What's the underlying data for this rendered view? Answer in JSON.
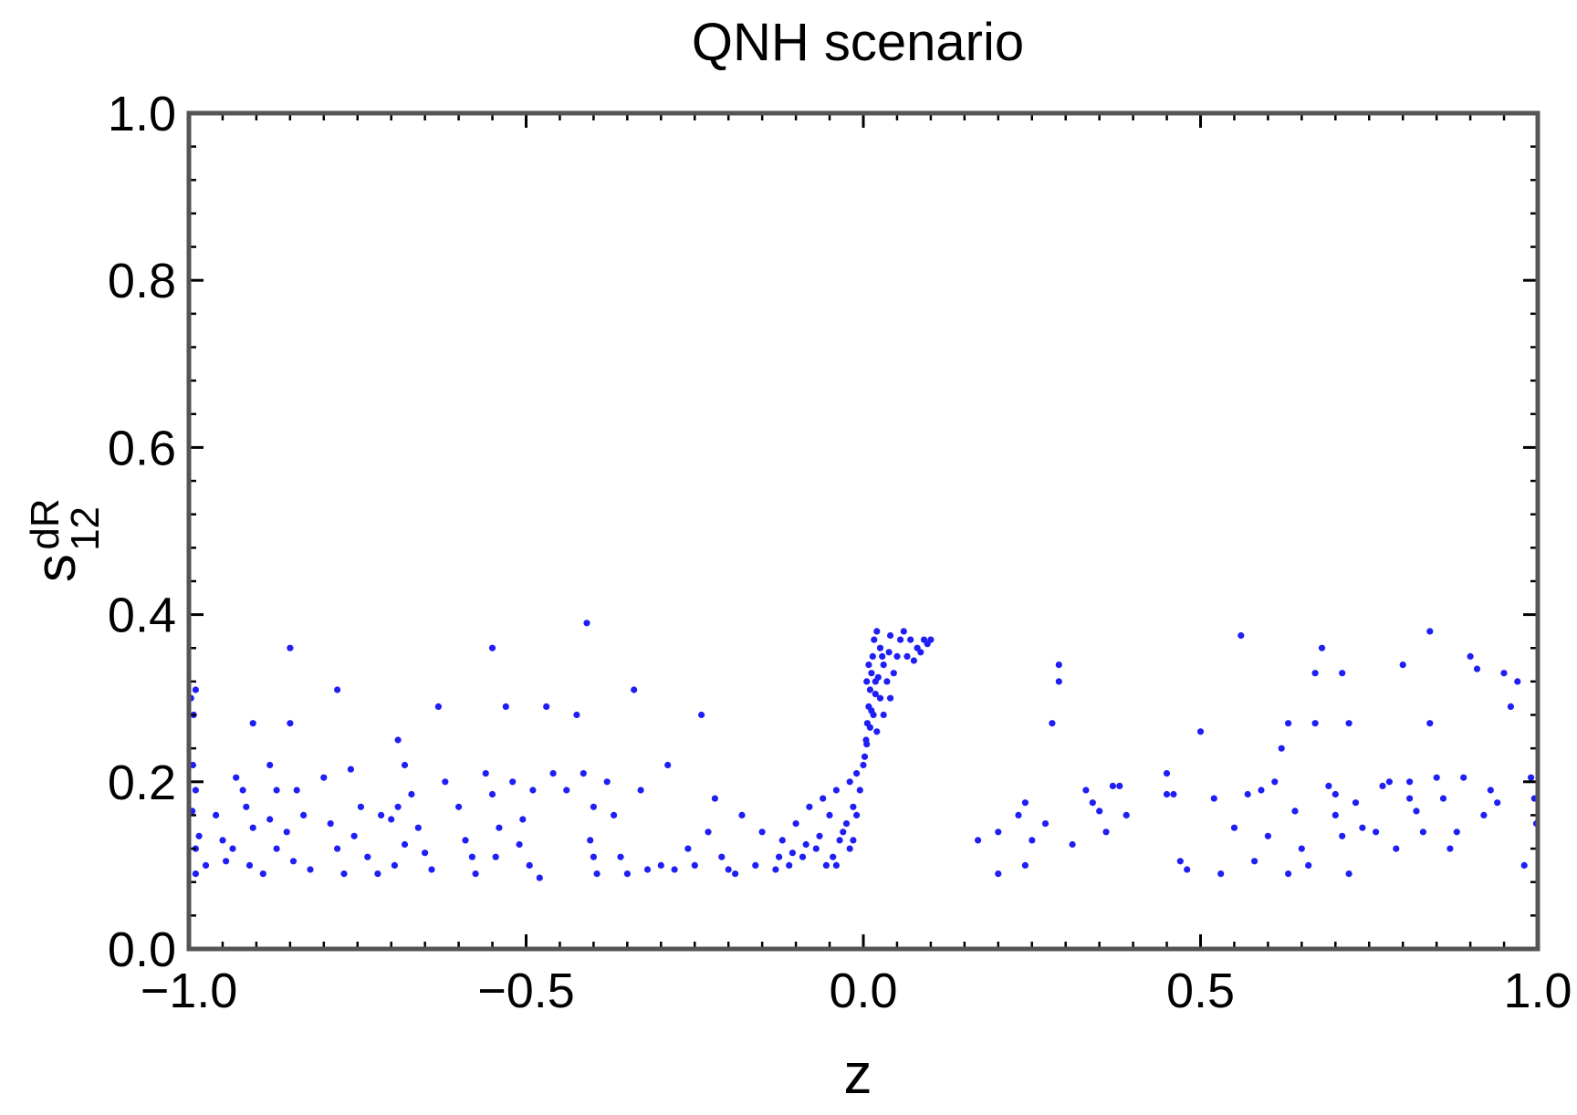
{
  "chart_data": {
    "type": "scatter",
    "title": "QNH scenario",
    "xlabel": "z",
    "ylabel": {
      "base": "s",
      "superscript": "dR",
      "subscript": "12"
    },
    "xlim": [
      -1.0,
      1.0
    ],
    "ylim": [
      0.0,
      1.0
    ],
    "xticks": [
      -1.0,
      -0.5,
      0.0,
      0.5,
      1.0
    ],
    "xtick_labels": [
      "−1.0",
      "−0.5",
      "0.0",
      "0.5",
      "1.0"
    ],
    "yticks": [
      0.0,
      0.2,
      0.4,
      0.6,
      0.8,
      1.0
    ],
    "ytick_labels": [
      "0.0",
      "0.2",
      "0.4",
      "0.6",
      "0.8",
      "1.0"
    ],
    "grid": false,
    "legend": "none",
    "colors": {
      "points": "#1f1ff5",
      "frame": "#555555"
    },
    "series": [
      {
        "points": [
          [
            -0.997,
            0.3
          ],
          [
            -0.99,
            0.31
          ],
          [
            -0.993,
            0.28
          ],
          [
            -0.994,
            0.22
          ],
          [
            -0.99,
            0.19
          ],
          [
            -0.995,
            0.165
          ],
          [
            -0.985,
            0.135
          ],
          [
            -0.99,
            0.12
          ],
          [
            -0.975,
            0.1
          ],
          [
            -0.99,
            0.09
          ],
          [
            -0.945,
            0.105
          ],
          [
            -0.95,
            0.13
          ],
          [
            -0.96,
            0.16
          ],
          [
            -0.93,
            0.205
          ],
          [
            -0.92,
            0.19
          ],
          [
            -0.915,
            0.17
          ],
          [
            -0.905,
            0.145
          ],
          [
            -0.935,
            0.12
          ],
          [
            -0.91,
            0.1
          ],
          [
            -0.905,
            0.27
          ],
          [
            -0.88,
            0.22
          ],
          [
            -0.87,
            0.19
          ],
          [
            -0.88,
            0.155
          ],
          [
            -0.855,
            0.14
          ],
          [
            -0.87,
            0.12
          ],
          [
            -0.89,
            0.09
          ],
          [
            -0.85,
            0.36
          ],
          [
            -0.85,
            0.27
          ],
          [
            -0.84,
            0.19
          ],
          [
            -0.83,
            0.16
          ],
          [
            -0.845,
            0.105
          ],
          [
            -0.82,
            0.095
          ],
          [
            -0.8,
            0.205
          ],
          [
            -0.79,
            0.15
          ],
          [
            -0.78,
            0.12
          ],
          [
            -0.77,
            0.09
          ],
          [
            -0.78,
            0.31
          ],
          [
            -0.76,
            0.215
          ],
          [
            -0.745,
            0.17
          ],
          [
            -0.755,
            0.135
          ],
          [
            -0.735,
            0.11
          ],
          [
            -0.72,
            0.09
          ],
          [
            -0.7,
            0.155
          ],
          [
            -0.69,
            0.17
          ],
          [
            -0.715,
            0.16
          ],
          [
            -0.68,
            0.125
          ],
          [
            -0.695,
            0.1
          ],
          [
            -0.69,
            0.25
          ],
          [
            -0.68,
            0.22
          ],
          [
            -0.67,
            0.185
          ],
          [
            -0.66,
            0.145
          ],
          [
            -0.65,
            0.115
          ],
          [
            -0.64,
            0.095
          ],
          [
            -0.62,
            0.2
          ],
          [
            -0.63,
            0.29
          ],
          [
            -0.6,
            0.17
          ],
          [
            -0.59,
            0.13
          ],
          [
            -0.58,
            0.11
          ],
          [
            -0.575,
            0.09
          ],
          [
            -0.56,
            0.21
          ],
          [
            -0.55,
            0.185
          ],
          [
            -0.54,
            0.145
          ],
          [
            -0.545,
            0.11
          ],
          [
            -0.55,
            0.36
          ],
          [
            -0.53,
            0.29
          ],
          [
            -0.52,
            0.2
          ],
          [
            -0.505,
            0.155
          ],
          [
            -0.51,
            0.125
          ],
          [
            -0.495,
            0.1
          ],
          [
            -0.49,
            0.19
          ],
          [
            -0.48,
            0.085
          ],
          [
            -0.47,
            0.29
          ],
          [
            -0.46,
            0.21
          ],
          [
            -0.44,
            0.19
          ],
          [
            -0.425,
            0.28
          ],
          [
            -0.415,
            0.21
          ],
          [
            -0.4,
            0.17
          ],
          [
            -0.405,
            0.13
          ],
          [
            -0.4,
            0.11
          ],
          [
            -0.395,
            0.09
          ],
          [
            -0.38,
            0.2
          ],
          [
            -0.37,
            0.16
          ],
          [
            -0.36,
            0.11
          ],
          [
            -0.35,
            0.09
          ],
          [
            -0.41,
            0.39
          ],
          [
            -0.34,
            0.31
          ],
          [
            -0.33,
            0.19
          ],
          [
            -0.29,
            0.22
          ],
          [
            -0.3,
            0.1
          ],
          [
            -0.26,
            0.12
          ],
          [
            -0.24,
            0.28
          ],
          [
            -0.23,
            0.14
          ],
          [
            -0.21,
            0.11
          ],
          [
            -0.2,
            0.095
          ],
          [
            -0.22,
            0.18
          ],
          [
            -0.18,
            0.16
          ],
          [
            -0.15,
            0.14
          ],
          [
            -0.12,
            0.13
          ],
          [
            -0.1,
            0.15
          ],
          [
            -0.08,
            0.17
          ],
          [
            -0.06,
            0.18
          ],
          [
            -0.04,
            0.19
          ],
          [
            -0.02,
            0.2
          ],
          [
            -0.01,
            0.21
          ],
          [
            0.0,
            0.22
          ],
          [
            -0.005,
            0.19
          ],
          [
            -0.015,
            0.17
          ],
          [
            -0.025,
            0.15
          ],
          [
            -0.035,
            0.13
          ],
          [
            -0.045,
            0.11
          ],
          [
            -0.055,
            0.1
          ],
          [
            -0.07,
            0.12
          ],
          [
            -0.09,
            0.11
          ],
          [
            -0.11,
            0.1
          ],
          [
            -0.13,
            0.095
          ],
          [
            -0.16,
            0.1
          ],
          [
            -0.19,
            0.09
          ],
          [
            -0.25,
            0.1
          ],
          [
            -0.28,
            0.095
          ],
          [
            -0.32,
            0.095
          ],
          [
            -0.03,
            0.14
          ],
          [
            -0.05,
            0.16
          ],
          [
            -0.065,
            0.135
          ],
          [
            -0.085,
            0.125
          ],
          [
            -0.105,
            0.115
          ],
          [
            -0.125,
            0.11
          ],
          [
            -0.02,
            0.12
          ],
          [
            -0.04,
            0.1
          ],
          [
            -0.01,
            0.16
          ],
          [
            -0.015,
            0.13
          ],
          [
            0.002,
            0.23
          ],
          [
            0.004,
            0.25
          ],
          [
            0.006,
            0.27
          ],
          [
            0.008,
            0.29
          ],
          [
            0.01,
            0.31
          ],
          [
            0.012,
            0.33
          ],
          [
            0.014,
            0.35
          ],
          [
            0.016,
            0.37
          ],
          [
            0.02,
            0.38
          ],
          [
            0.025,
            0.36
          ],
          [
            0.03,
            0.34
          ],
          [
            0.035,
            0.32
          ],
          [
            0.04,
            0.3
          ],
          [
            0.045,
            0.33
          ],
          [
            0.05,
            0.35
          ],
          [
            0.055,
            0.37
          ],
          [
            0.06,
            0.38
          ],
          [
            0.07,
            0.37
          ],
          [
            0.08,
            0.36
          ],
          [
            0.09,
            0.37
          ],
          [
            0.1,
            0.37
          ],
          [
            0.015,
            0.28
          ],
          [
            0.02,
            0.26
          ],
          [
            0.025,
            0.3
          ],
          [
            0.03,
            0.28
          ],
          [
            0.005,
            0.32
          ],
          [
            0.008,
            0.34
          ],
          [
            0.018,
            0.32
          ],
          [
            0.028,
            0.35
          ],
          [
            0.038,
            0.355
          ],
          [
            0.005,
            0.245
          ],
          [
            0.01,
            0.265
          ],
          [
            0.012,
            0.285
          ],
          [
            0.018,
            0.305
          ],
          [
            0.022,
            0.325
          ],
          [
            0.04,
            0.375
          ],
          [
            0.065,
            0.35
          ],
          [
            0.075,
            0.345
          ],
          [
            0.085,
            0.355
          ],
          [
            0.095,
            0.365
          ],
          [
            0.17,
            0.13
          ],
          [
            0.2,
            0.14
          ],
          [
            0.2,
            0.09
          ],
          [
            0.23,
            0.16
          ],
          [
            0.24,
            0.175
          ],
          [
            0.25,
            0.13
          ],
          [
            0.24,
            0.1
          ],
          [
            0.27,
            0.15
          ],
          [
            0.28,
            0.27
          ],
          [
            0.29,
            0.34
          ],
          [
            0.29,
            0.32
          ],
          [
            0.31,
            0.125
          ],
          [
            0.33,
            0.19
          ],
          [
            0.34,
            0.175
          ],
          [
            0.35,
            0.165
          ],
          [
            0.36,
            0.14
          ],
          [
            0.37,
            0.195
          ],
          [
            0.38,
            0.195
          ],
          [
            0.39,
            0.16
          ],
          [
            0.45,
            0.21
          ],
          [
            0.45,
            0.185
          ],
          [
            0.46,
            0.185
          ],
          [
            0.47,
            0.105
          ],
          [
            0.48,
            0.095
          ],
          [
            0.5,
            0.26
          ],
          [
            0.52,
            0.18
          ],
          [
            0.53,
            0.09
          ],
          [
            0.55,
            0.145
          ],
          [
            0.56,
            0.375
          ],
          [
            0.57,
            0.185
          ],
          [
            0.58,
            0.105
          ],
          [
            0.59,
            0.19
          ],
          [
            0.6,
            0.135
          ],
          [
            0.61,
            0.2
          ],
          [
            0.62,
            0.24
          ],
          [
            0.63,
            0.27
          ],
          [
            0.63,
            0.09
          ],
          [
            0.64,
            0.165
          ],
          [
            0.65,
            0.12
          ],
          [
            0.66,
            0.1
          ],
          [
            0.67,
            0.33
          ],
          [
            0.67,
            0.27
          ],
          [
            0.68,
            0.36
          ],
          [
            0.69,
            0.195
          ],
          [
            0.7,
            0.185
          ],
          [
            0.7,
            0.16
          ],
          [
            0.71,
            0.135
          ],
          [
            0.71,
            0.33
          ],
          [
            0.72,
            0.27
          ],
          [
            0.72,
            0.09
          ],
          [
            0.73,
            0.175
          ],
          [
            0.74,
            0.145
          ],
          [
            0.76,
            0.14
          ],
          [
            0.77,
            0.195
          ],
          [
            0.78,
            0.2
          ],
          [
            0.79,
            0.12
          ],
          [
            0.8,
            0.34
          ],
          [
            0.81,
            0.2
          ],
          [
            0.81,
            0.18
          ],
          [
            0.82,
            0.165
          ],
          [
            0.83,
            0.14
          ],
          [
            0.84,
            0.38
          ],
          [
            0.84,
            0.27
          ],
          [
            0.85,
            0.205
          ],
          [
            0.86,
            0.18
          ],
          [
            0.87,
            0.12
          ],
          [
            0.88,
            0.14
          ],
          [
            0.89,
            0.205
          ],
          [
            0.9,
            0.35
          ],
          [
            0.91,
            0.335
          ],
          [
            0.92,
            0.16
          ],
          [
            0.93,
            0.19
          ],
          [
            0.94,
            0.175
          ],
          [
            0.95,
            0.33
          ],
          [
            0.96,
            0.29
          ],
          [
            0.97,
            0.32
          ],
          [
            0.98,
            0.1
          ],
          [
            0.99,
            0.205
          ],
          [
            0.995,
            0.18
          ],
          [
            0.998,
            0.15
          ]
        ]
      }
    ]
  }
}
